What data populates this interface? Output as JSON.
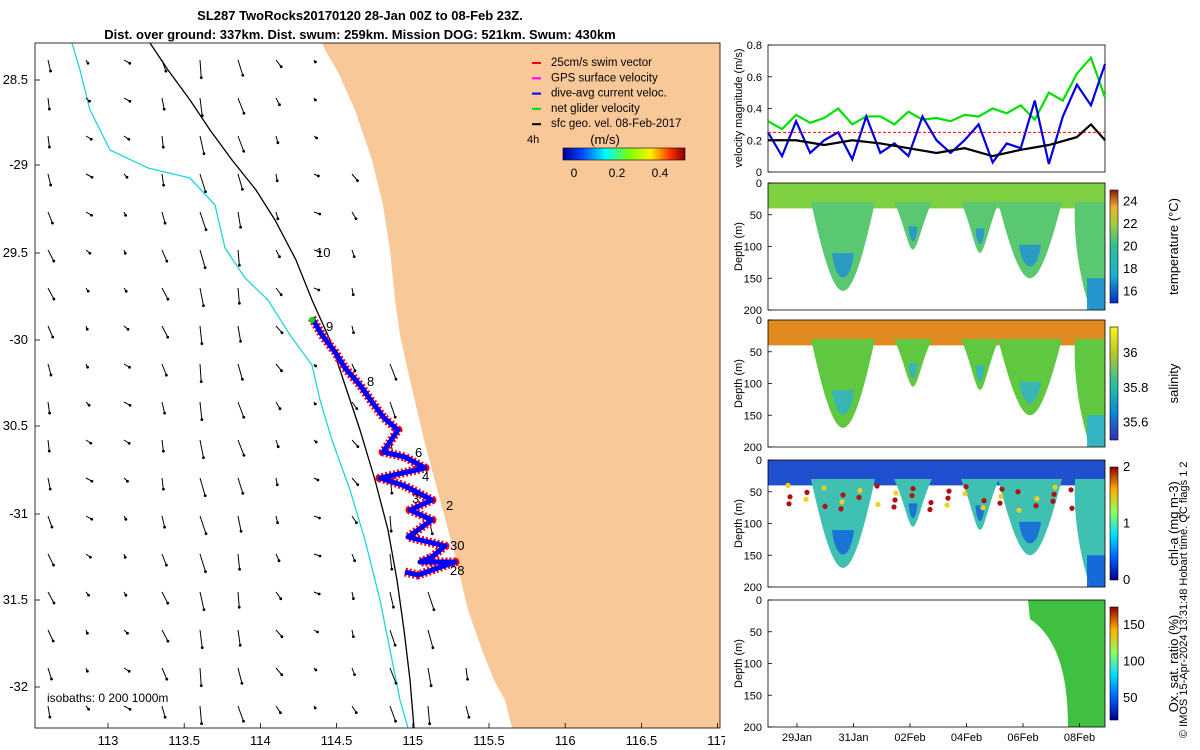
{
  "title": {
    "line1": "SL287 TwoRocks20170120 28-Jan 00Z to 08-Feb 23Z.",
    "line2": "Dist. over ground: 337km. Dist. swum: 259km. Mission DOG: 521km. Swum: 430km"
  },
  "map": {
    "lat_ticks": [
      "28.5",
      "-29",
      "29.5",
      "-30",
      "30.5",
      "-31",
      "31.5",
      "-32"
    ],
    "lon_ticks": [
      "113",
      "113.5",
      "114",
      "114.5",
      "115",
      "115.5",
      "116",
      "116.5",
      "117"
    ],
    "isobaths_label": "isobaths: 0   200  1000m",
    "time_label": "4h",
    "day_labels": [
      "10",
      "9",
      "8",
      "6",
      "4",
      "3",
      "2",
      "30",
      "28"
    ],
    "legend": [
      {
        "label": "25cm/s swim vector",
        "color": "#ff0000"
      },
      {
        "label": "GPS surface velocity",
        "color": "#ff00ff"
      },
      {
        "label": "dive-avg current veloc.",
        "color": "#0000ff"
      },
      {
        "label": "net glider velocity",
        "color": "#00dd00"
      },
      {
        "label": "sfc geo. vel. 08-Feb-2017",
        "color": "#000000"
      }
    ],
    "colorbar": {
      "title": "(m/s)",
      "ticks": [
        "0",
        "0.2",
        "0.4"
      ]
    },
    "colors": {
      "land": "#f9c899",
      "sea": "#ffffff",
      "isobath_shallow": "#22d3e0",
      "isobath_deep": "#000000"
    }
  },
  "chart_data": [
    {
      "type": "line",
      "ylabel": "velocity magnitude (m/s)",
      "ylim": [
        0,
        0.8
      ],
      "yticks": [
        "0",
        "0.2",
        "0.4",
        "0.6",
        "0.8"
      ],
      "xlim": [
        0,
        12
      ],
      "series": [
        {
          "name": "net glider velocity",
          "color": "#00e000",
          "x": [
            0,
            0.5,
            1,
            1.5,
            2,
            2.5,
            3,
            3.5,
            4,
            4.5,
            5,
            5.5,
            6,
            6.5,
            7,
            7.5,
            8,
            8.5,
            9,
            9.5,
            10,
            10.5,
            11,
            11.5,
            12
          ],
          "values": [
            0.32,
            0.27,
            0.36,
            0.31,
            0.34,
            0.4,
            0.3,
            0.35,
            0.35,
            0.3,
            0.38,
            0.33,
            0.34,
            0.32,
            0.36,
            0.35,
            0.4,
            0.37,
            0.42,
            0.33,
            0.5,
            0.45,
            0.62,
            0.72,
            0.47
          ]
        },
        {
          "name": "dive-avg current veloc.",
          "color": "#0000e0",
          "x": [
            0,
            0.5,
            1,
            1.5,
            2,
            2.5,
            3,
            3.5,
            4,
            4.5,
            5,
            5.5,
            6,
            6.5,
            7,
            7.5,
            8,
            8.5,
            9,
            9.5,
            10,
            10.5,
            11,
            11.5,
            12
          ],
          "values": [
            0.25,
            0.1,
            0.32,
            0.12,
            0.2,
            0.25,
            0.08,
            0.35,
            0.12,
            0.18,
            0.1,
            0.35,
            0.2,
            0.12,
            0.2,
            0.3,
            0.06,
            0.18,
            0.15,
            0.45,
            0.05,
            0.35,
            0.55,
            0.42,
            0.68
          ]
        },
        {
          "name": "sfc geo. vel.",
          "color": "#000000",
          "x": [
            0,
            1,
            2,
            3,
            4,
            5,
            6,
            7,
            8,
            9,
            10,
            11,
            11.5,
            12
          ],
          "values": [
            0.2,
            0.2,
            0.17,
            0.2,
            0.18,
            0.15,
            0.12,
            0.15,
            0.1,
            0.14,
            0.17,
            0.22,
            0.3,
            0.2
          ]
        },
        {
          "name": "25cm/s swim vector",
          "color": "#ff0000",
          "x": [
            0,
            12
          ],
          "values": [
            0.25,
            0.25
          ]
        }
      ]
    },
    {
      "type": "heatmap",
      "ylabel": "Depth (m)",
      "ylim": [
        200,
        0
      ],
      "yticks": [
        "0",
        "50",
        "100",
        "150",
        "200"
      ],
      "colorbar_label": "temperature (°C)",
      "colorbar_ticks": [
        "16",
        "18",
        "20",
        "22",
        "24"
      ]
    },
    {
      "type": "heatmap",
      "ylabel": "Depth (m)",
      "ylim": [
        200,
        0
      ],
      "yticks": [
        "0",
        "50",
        "100",
        "150",
        "200"
      ],
      "colorbar_label": "salinity",
      "colorbar_ticks": [
        "35.6",
        "35.8",
        "36"
      ]
    },
    {
      "type": "heatmap",
      "ylabel": "Depth (m)",
      "ylim": [
        200,
        0
      ],
      "yticks": [
        "0",
        "50",
        "100",
        "150",
        "200"
      ],
      "colorbar_label": "chl-a (mg m-3)",
      "colorbar_ticks": [
        "0",
        "1",
        "2"
      ]
    },
    {
      "type": "heatmap",
      "ylabel": "Depth (m)",
      "ylim": [
        200,
        0
      ],
      "yticks": [
        "0",
        "50",
        "100",
        "150",
        "200"
      ],
      "colorbar_label": "Ox. sat. ratio (%)",
      "colorbar_ticks": [
        "50",
        "100",
        "150"
      ],
      "xtick_labels": [
        "29Jan",
        "31Jan",
        "02Feb",
        "04Feb",
        "06Feb",
        "08Feb"
      ]
    }
  ],
  "side_note": "© IMOS 15-Apr-2024 13:31:48 Hobart time. QC flags 1  2"
}
